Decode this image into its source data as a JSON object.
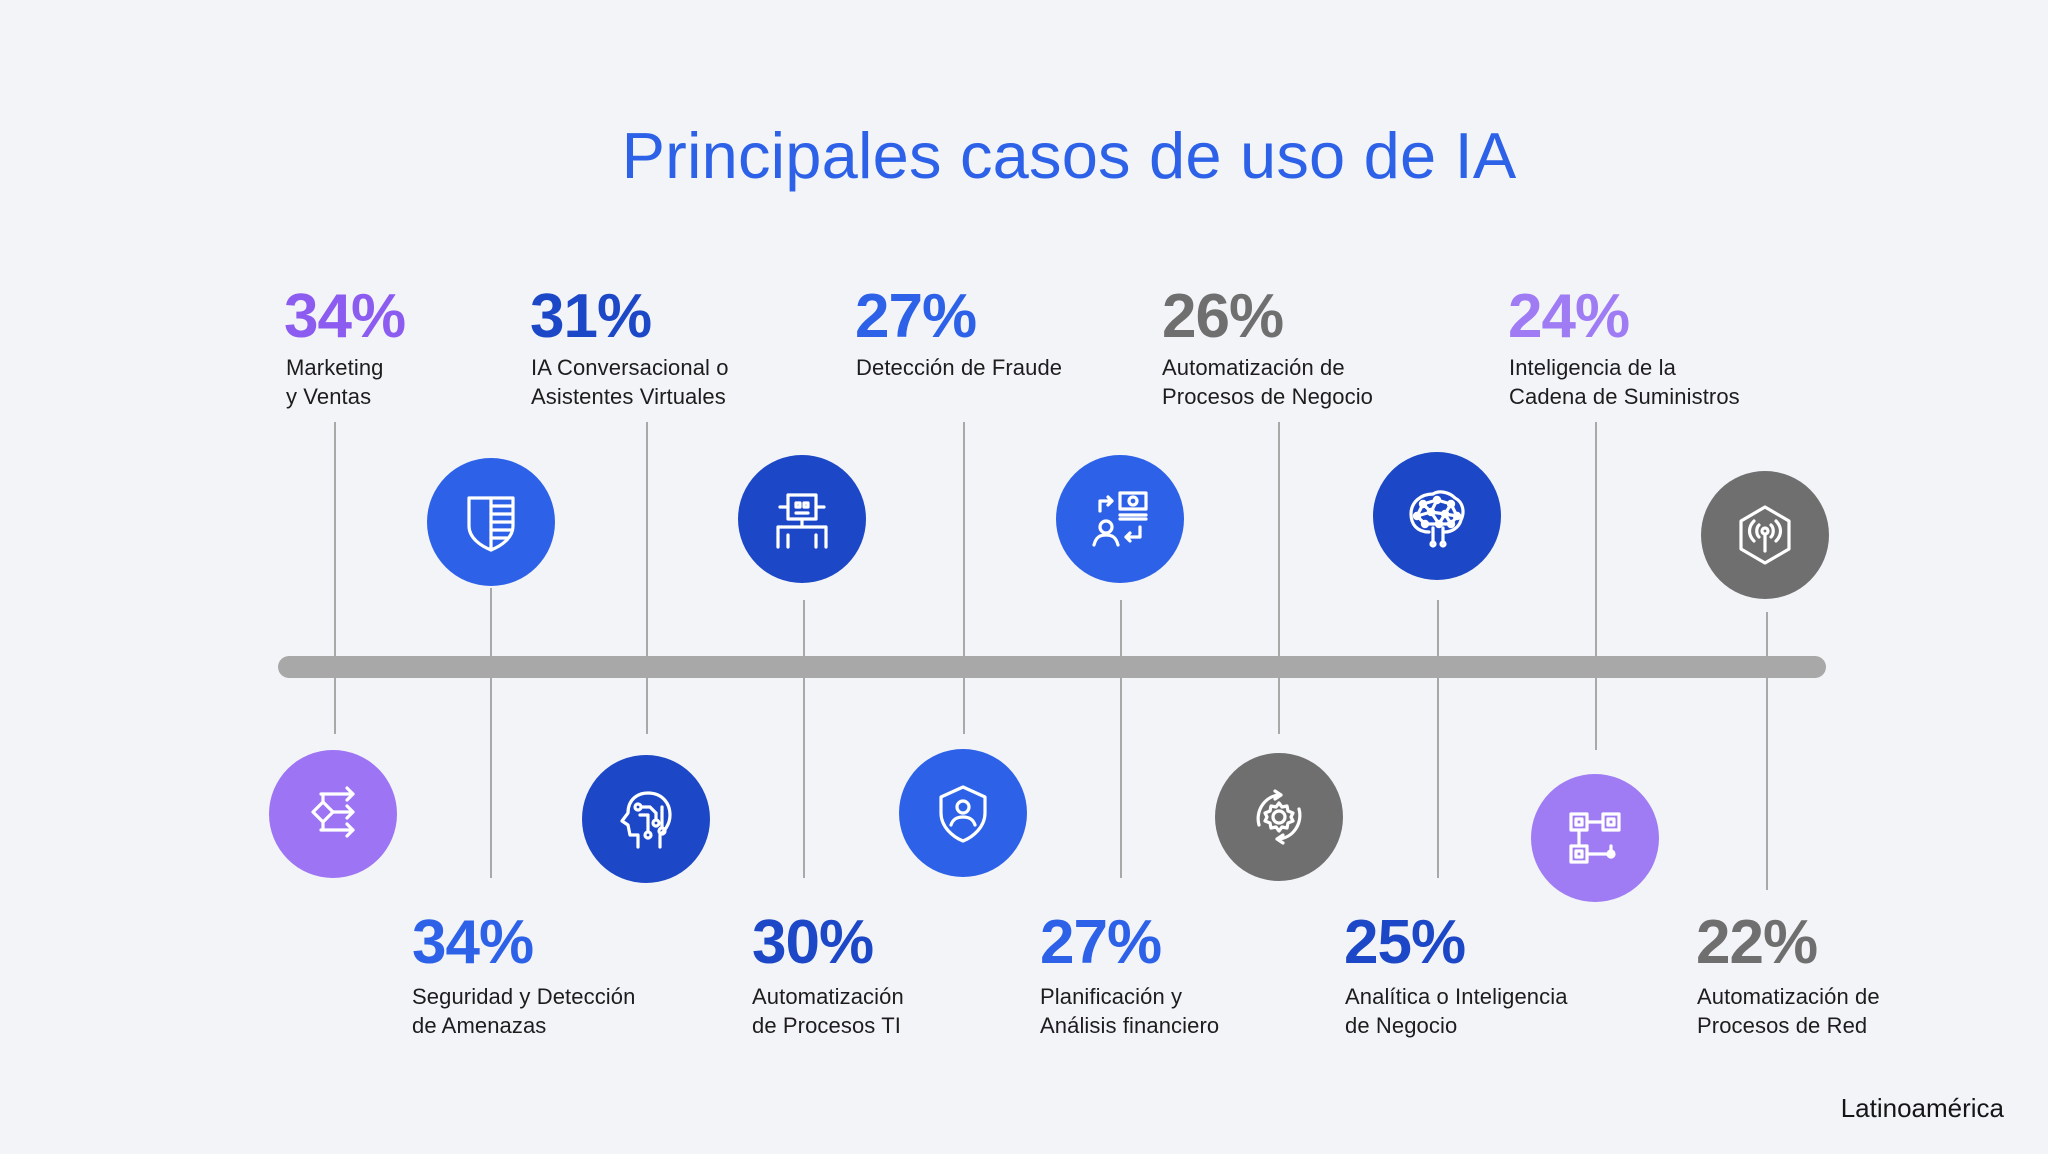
{
  "title": "Principales casos de uso de IA",
  "footer": "Latinoamérica",
  "colors": {
    "purple": "#8c5cf0",
    "light_purple": "#a07cf4",
    "blue": "#2d62e8",
    "dark_blue": "#1c47c6",
    "gray": "#6f6f6f",
    "axis": "#a8a8a8",
    "background": "#f2f4f8"
  },
  "items": [
    {
      "pct": "34%",
      "label": "Marketing\ny Ventas",
      "color": "#8c5cf0",
      "icon": "flowchart-icon"
    },
    {
      "pct": "34%",
      "label": "Seguridad y Detección\nde Amenazas",
      "color": "#2d62e8",
      "icon": "shield-icon"
    },
    {
      "pct": "31%",
      "label": "IA Conversacional o\nAsistentes Virtuales",
      "color": "#1c47c6",
      "icon": "ai-head-icon"
    },
    {
      "pct": "30%",
      "label": "Automatización\nde Procesos TI",
      "color": "#1c47c6",
      "icon": "robot-icon"
    },
    {
      "pct": "27%",
      "label": "Detección de Fraude",
      "color": "#2d62e8",
      "icon": "user-shield-icon"
    },
    {
      "pct": "27%",
      "label": "Planificación y\nAnálisis financiero",
      "color": "#2d62e8",
      "icon": "money-transfer-icon"
    },
    {
      "pct": "26%",
      "label": "Automatización de\nProcesos de Negocio",
      "color": "#6f6f6f",
      "icon": "gear-cycle-icon"
    },
    {
      "pct": "25%",
      "label": "Analítica o Inteligencia\nde Negocio",
      "color": "#1c47c6",
      "icon": "brain-network-icon"
    },
    {
      "pct": "24%",
      "label": "Inteligencia de la\nCadena de Suministros",
      "color": "#a07cf4",
      "icon": "supply-chain-icon"
    },
    {
      "pct": "22%",
      "label": "Automatización de\nProcesos de Red",
      "color": "#6f6f6f",
      "icon": "network-signal-icon"
    }
  ]
}
